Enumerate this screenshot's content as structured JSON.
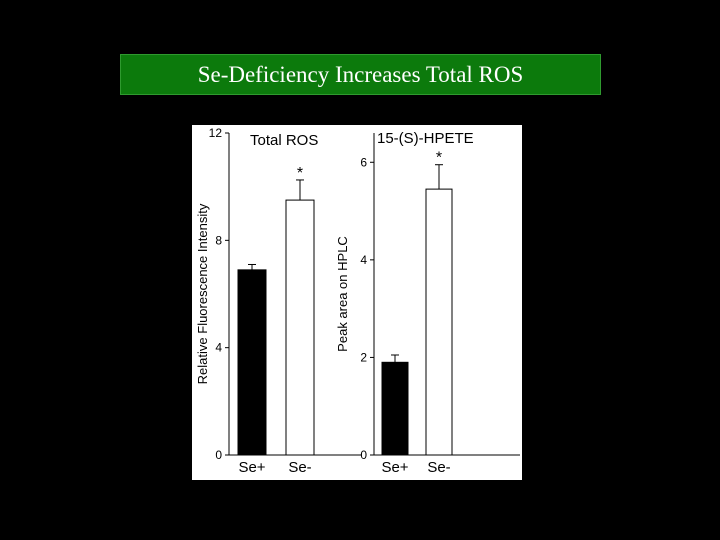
{
  "slide": {
    "title": "Se-Deficiency Increases Total ROS",
    "colors": {
      "background": "#000000",
      "title_bar": "#0c7a0c",
      "title_text": "#ffffff"
    }
  },
  "chart_data": [
    {
      "type": "bar",
      "title": "Total ROS",
      "ylabel": "Relative Fluorescence Intensity",
      "categories": [
        "Se+",
        "Se-"
      ],
      "values": [
        6.9,
        9.5
      ],
      "errors": [
        0.2,
        0.75
      ],
      "significance": [
        "",
        "*"
      ],
      "ylim": [
        0,
        12
      ],
      "yticks": [
        0,
        4,
        8,
        12
      ],
      "bar_colors": [
        "#000000",
        "#ffffff"
      ]
    },
    {
      "type": "bar",
      "title": "15-(S)-HPETE",
      "ylabel": "Peak area on HPLC",
      "categories": [
        "Se+",
        "Se-"
      ],
      "values": [
        1.9,
        5.45
      ],
      "errors": [
        0.15,
        0.5
      ],
      "significance": [
        "",
        "*"
      ],
      "ylim": [
        0,
        6.6
      ],
      "yticks": [
        0,
        2,
        4,
        6
      ],
      "bar_colors": [
        "#000000",
        "#ffffff"
      ]
    }
  ]
}
